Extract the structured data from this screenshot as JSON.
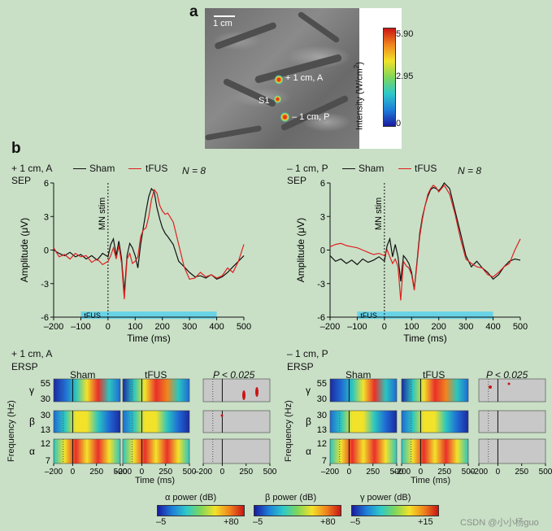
{
  "panel_a": {
    "letter": "a",
    "scale_bar_label": "1 cm",
    "labels": {
      "anterior": "+ 1 cm, A",
      "s1": "S1",
      "posterior": "– 1 cm, P"
    },
    "colorbar": {
      "title": "Intensity (W/cm",
      "title_sup": "2",
      "title_end": ")",
      "max": "5.90",
      "mid": "2.95",
      "min": "0"
    }
  },
  "panel_b": {
    "letter": "b",
    "left_title": "+ 1 cm, A",
    "right_title": "– 1 cm, P",
    "sep_label": "SEP",
    "ersp_label": "ERSP",
    "legend": {
      "sham": "Sham",
      "tfus": "tFUS"
    },
    "n_label": "N = 8",
    "mn_stim_label": "MN stim",
    "tfus_bar_label": "tFUS",
    "ersp_titles": {
      "sham": "Sham",
      "tfus": "tFUS",
      "p": "P < 0.025"
    },
    "band_labels": [
      "γ",
      "β",
      "α"
    ],
    "freq_ticks": {
      "gamma": [
        "55",
        "30"
      ],
      "beta": [
        "30",
        "13"
      ],
      "alpha": [
        "12",
        "7"
      ]
    },
    "ersp_xticks": [
      "–200",
      "0",
      "250",
      "500"
    ],
    "ersp_xlabel": "Time (ms)",
    "ersp_ylabel": "Frequency (Hz)",
    "power_colorbars": [
      {
        "title": "α power (dB)",
        "min": "–5",
        "max": "+80"
      },
      {
        "title": "β power (dB)",
        "min": "–5",
        "max": "+80"
      },
      {
        "title": "γ power (dB)",
        "min": "–5",
        "max": "+15"
      }
    ],
    "watermark": "CSDN @小小杨guo"
  },
  "colors": {
    "sham": "#111111",
    "tfus": "#e02020",
    "tfus_bar": "#69d3e6",
    "background": "#c9e0c6",
    "p_panel": "#c8c8c8"
  },
  "chart_data": [
    {
      "type": "line",
      "title": "+ 1 cm, A SEP",
      "xlabel": "Time (ms)",
      "ylabel": "Amplitude (μV)",
      "xlim": [
        -200,
        500
      ],
      "ylim": [
        -6,
        6
      ],
      "xticks": [
        -200,
        -100,
        0,
        100,
        200,
        300,
        400,
        500
      ],
      "yticks": [
        6,
        3,
        0,
        -3,
        -6
      ],
      "tfus_interval": [
        -100,
        400
      ],
      "series": [
        {
          "name": "Sham",
          "x": [
            -200,
            -180,
            -160,
            -140,
            -120,
            -100,
            -80,
            -60,
            -40,
            -20,
            0,
            10,
            20,
            30,
            40,
            50,
            60,
            70,
            80,
            90,
            100,
            110,
            120,
            130,
            140,
            150,
            160,
            170,
            180,
            190,
            200,
            210,
            220,
            240,
            260,
            280,
            300,
            320,
            340,
            360,
            380,
            400,
            420,
            440,
            460,
            480,
            500
          ],
          "y": [
            0,
            -0.3,
            -0.5,
            -0.2,
            -0.6,
            -0.4,
            -0.8,
            -0.5,
            -0.9,
            -0.3,
            -0.6,
            0.5,
            1.0,
            -0.5,
            0.8,
            -0.8,
            -3.8,
            -0.5,
            0.6,
            0.2,
            -0.5,
            -1.6,
            0.5,
            2.0,
            3.5,
            4.8,
            5.5,
            5.2,
            3.8,
            2.8,
            2.0,
            1.5,
            1.2,
            0.5,
            -1.0,
            -1.5,
            -2.0,
            -2.4,
            -2.3,
            -2.5,
            -2.2,
            -2.6,
            -2.4,
            -2.0,
            -1.5,
            -1.0,
            -0.5
          ]
        },
        {
          "name": "tFUS",
          "x": [
            -200,
            -180,
            -160,
            -140,
            -120,
            -100,
            -80,
            -60,
            -40,
            -20,
            0,
            10,
            20,
            30,
            40,
            50,
            60,
            70,
            80,
            90,
            100,
            110,
            120,
            130,
            140,
            150,
            160,
            170,
            180,
            190,
            200,
            210,
            220,
            240,
            260,
            280,
            300,
            320,
            340,
            360,
            380,
            400,
            420,
            440,
            460,
            480,
            500
          ],
          "y": [
            0.2,
            -0.6,
            -0.4,
            -0.8,
            -0.3,
            -0.6,
            -0.5,
            -1.1,
            -0.8,
            -1.3,
            -1.0,
            -0.5,
            0.2,
            -0.8,
            0.4,
            -1.2,
            -4.4,
            -0.8,
            -0.3,
            -1.2,
            -1.0,
            -0.6,
            1.2,
            1.8,
            2.0,
            3.0,
            4.5,
            5.4,
            5.1,
            4.0,
            3.5,
            3.2,
            3.3,
            2.5,
            0.5,
            -1.5,
            -2.6,
            -2.5,
            -2.0,
            -2.4,
            -2.2,
            -2.5,
            -2.3,
            -1.6,
            -2.0,
            -1.0,
            0.5
          ]
        }
      ]
    },
    {
      "type": "line",
      "title": "– 1 cm, P SEP",
      "xlabel": "Time (ms)",
      "ylabel": "Amplitude (μV)",
      "xlim": [
        -200,
        500
      ],
      "ylim": [
        -6,
        6
      ],
      "xticks": [
        -200,
        -100,
        0,
        100,
        200,
        300,
        400,
        500
      ],
      "yticks": [
        6,
        3,
        0,
        -3,
        -6
      ],
      "tfus_interval": [
        -100,
        400
      ],
      "series": [
        {
          "name": "Sham",
          "x": [
            -200,
            -180,
            -160,
            -140,
            -120,
            -100,
            -80,
            -60,
            -40,
            -20,
            0,
            10,
            20,
            30,
            40,
            50,
            60,
            70,
            80,
            90,
            100,
            110,
            120,
            130,
            140,
            150,
            160,
            170,
            180,
            190,
            200,
            210,
            220,
            240,
            260,
            280,
            300,
            320,
            340,
            360,
            380,
            400,
            420,
            440,
            460,
            480,
            500
          ],
          "y": [
            -0.5,
            -1.0,
            -0.8,
            -1.2,
            -0.9,
            -1.3,
            -0.8,
            -1.1,
            -0.9,
            -0.6,
            -1.0,
            0.4,
            1.0,
            -0.6,
            0.5,
            -0.6,
            -2.8,
            -0.5,
            -0.8,
            -1.2,
            -2.0,
            -3.5,
            -1.0,
            1.5,
            3.0,
            4.0,
            4.8,
            5.4,
            5.6,
            5.5,
            5.3,
            5.6,
            6.0,
            5.5,
            3.5,
            1.5,
            -0.5,
            -1.5,
            -1.0,
            -1.6,
            -2.0,
            -2.6,
            -2.2,
            -1.5,
            -1.0,
            -0.8,
            -0.9
          ]
        },
        {
          "name": "tFUS",
          "x": [
            -200,
            -180,
            -160,
            -140,
            -120,
            -100,
            -80,
            -60,
            -40,
            -20,
            0,
            10,
            20,
            30,
            40,
            50,
            60,
            70,
            80,
            90,
            100,
            110,
            120,
            130,
            140,
            150,
            160,
            170,
            180,
            190,
            200,
            210,
            220,
            240,
            260,
            280,
            300,
            320,
            340,
            360,
            380,
            400,
            420,
            440,
            460,
            480,
            500
          ],
          "y": [
            0.3,
            0.5,
            0.6,
            0.4,
            0.3,
            0.2,
            0.0,
            -0.2,
            -0.4,
            -0.3,
            -0.5,
            0.0,
            -0.6,
            -1.2,
            -0.8,
            -1.5,
            -4.5,
            -1.0,
            -1.4,
            -1.6,
            -2.2,
            -3.6,
            -1.2,
            1.2,
            2.8,
            4.0,
            5.0,
            5.5,
            5.8,
            5.6,
            5.2,
            5.5,
            5.8,
            5.0,
            3.2,
            1.0,
            -0.8,
            -1.2,
            -1.5,
            -1.6,
            -2.2,
            -2.4,
            -2.0,
            -1.5,
            -1.2,
            0.0,
            1.0
          ]
        }
      ]
    }
  ]
}
